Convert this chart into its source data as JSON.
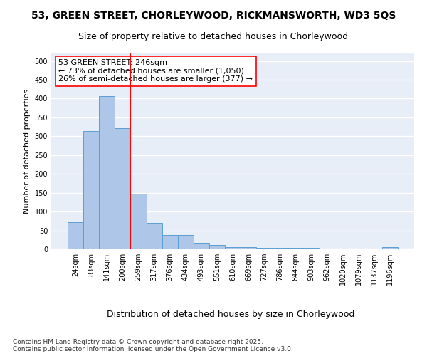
{
  "title_line1": "53, GREEN STREET, CHORLEYWOOD, RICKMANSWORTH, WD3 5QS",
  "title_line2": "Size of property relative to detached houses in Chorleywood",
  "xlabel": "Distribution of detached houses by size in Chorleywood",
  "ylabel": "Number of detached properties",
  "categories": [
    "24sqm",
    "83sqm",
    "141sqm",
    "200sqm",
    "259sqm",
    "317sqm",
    "376sqm",
    "434sqm",
    "493sqm",
    "551sqm",
    "610sqm",
    "669sqm",
    "727sqm",
    "786sqm",
    "844sqm",
    "903sqm",
    "962sqm",
    "1020sqm",
    "1079sqm",
    "1137sqm",
    "1196sqm"
  ],
  "values": [
    72,
    314,
    407,
    322,
    148,
    70,
    38,
    37,
    17,
    11,
    6,
    6,
    1,
    1,
    1,
    1,
    0,
    0,
    0,
    0,
    5
  ],
  "bar_color": "#aec6e8",
  "bar_edge_color": "#5a9fd4",
  "vline_x": 3.5,
  "vline_color": "red",
  "annotation_text": "53 GREEN STREET: 246sqm\n← 73% of detached houses are smaller (1,050)\n26% of semi-detached houses are larger (377) →",
  "annotation_box_color": "white",
  "annotation_box_edge_color": "red",
  "ylim": [
    0,
    520
  ],
  "yticks": [
    0,
    50,
    100,
    150,
    200,
    250,
    300,
    350,
    400,
    450,
    500
  ],
  "background_color": "#e8eef8",
  "grid_color": "white",
  "footnote": "Contains HM Land Registry data © Crown copyright and database right 2025.\nContains public sector information licensed under the Open Government Licence v3.0.",
  "title_fontsize": 10,
  "subtitle_fontsize": 9,
  "xlabel_fontsize": 9,
  "ylabel_fontsize": 8,
  "tick_fontsize": 7,
  "annotation_fontsize": 8,
  "footnote_fontsize": 6.5
}
